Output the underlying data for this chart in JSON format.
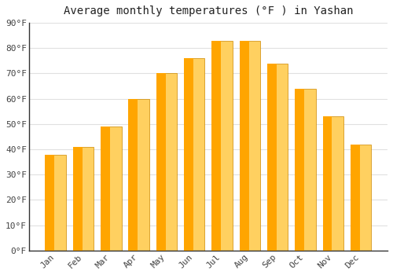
{
  "title": "Average monthly temperatures (°F ) in Yashan",
  "months": [
    "Jan",
    "Feb",
    "Mar",
    "Apr",
    "May",
    "Jun",
    "Jul",
    "Aug",
    "Sep",
    "Oct",
    "Nov",
    "Dec"
  ],
  "values": [
    38,
    41,
    49,
    60,
    70,
    76,
    83,
    83,
    74,
    64,
    53,
    42
  ],
  "bar_color_main": "#FFA500",
  "bar_color_light": "#FFD060",
  "bar_edge_color": "#CC8800",
  "background_color": "#ffffff",
  "grid_color": "#e0e0e0",
  "axis_color": "#333333",
  "ylim": [
    0,
    90
  ],
  "yticks": [
    0,
    10,
    20,
    30,
    40,
    50,
    60,
    70,
    80,
    90
  ],
  "ytick_labels": [
    "0°F",
    "10°F",
    "20°F",
    "30°F",
    "40°F",
    "50°F",
    "60°F",
    "70°F",
    "80°F",
    "90°F"
  ],
  "title_fontsize": 10,
  "tick_fontsize": 8,
  "bar_width": 0.75,
  "title_font": "monospace",
  "tick_font": "monospace"
}
